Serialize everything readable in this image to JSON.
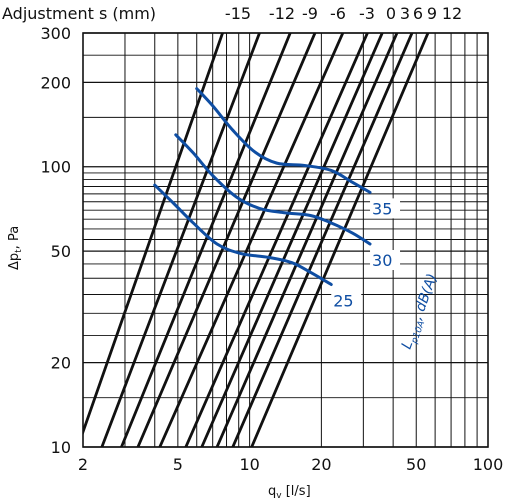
{
  "chart_data": {
    "type": "line",
    "xscale": "log",
    "yscale": "log",
    "xlim": [
      2,
      100
    ],
    "ylim": [
      10,
      300
    ],
    "xlabel": "q",
    "xlabel_sub": "v",
    "xlabel_unit": " [l/s]",
    "ylabel": "Δp",
    "ylabel_sub": "t",
    "ylabel_unit": ", Pa",
    "x_ticks": [
      2,
      5,
      10,
      20,
      50,
      100
    ],
    "y_ticks": [
      10,
      20,
      50,
      100,
      200,
      300
    ],
    "adjustment_title": "Adjustment s (mm)",
    "adjustment_labels": [
      "-15",
      "-12",
      "-9",
      "-6",
      "-3",
      "0",
      "3",
      "6",
      "9",
      "12"
    ],
    "adjustment_lines": [
      {
        "label": "-15",
        "x_at_ymin": 1.9,
        "x_at_ymax": 7.7
      },
      {
        "label": "-12",
        "x_at_ymin": 2.4,
        "x_at_ymax": 11.0
      },
      {
        "label": "-9",
        "x_at_ymin": 2.9,
        "x_at_ymax": 14.8
      },
      {
        "label": "-6",
        "x_at_ymin": 3.4,
        "x_at_ymax": 18.8
      },
      {
        "label": "-3",
        "x_at_ymin": 4.2,
        "x_at_ymax": 24.6
      },
      {
        "label": "0",
        "x_at_ymin": 5.4,
        "x_at_ymax": 31.2
      },
      {
        "label": "3",
        "x_at_ymin": 6.3,
        "x_at_ymax": 36.0
      },
      {
        "label": "6",
        "x_at_ymin": 7.3,
        "x_at_ymax": 41.5
      },
      {
        "label": "9",
        "x_at_ymin": 8.5,
        "x_at_ymax": 48.0
      },
      {
        "label": "12",
        "x_at_ymin": 10.2,
        "x_at_ymax": 56.0
      }
    ],
    "series": [
      {
        "name": "35",
        "points": [
          [
            6.0,
            190
          ],
          [
            7.0,
            165
          ],
          [
            8.5,
            135
          ],
          [
            10.5,
            113
          ],
          [
            13,
            103
          ],
          [
            17,
            101
          ],
          [
            22,
            97
          ],
          [
            27,
            88
          ],
          [
            32,
            81
          ]
        ]
      },
      {
        "name": "30",
        "points": [
          [
            4.9,
            130
          ],
          [
            5.8,
            112
          ],
          [
            7.0,
            93
          ],
          [
            8.8,
            78
          ],
          [
            11,
            71
          ],
          [
            14,
            68.5
          ],
          [
            18,
            67
          ],
          [
            22,
            63
          ],
          [
            27,
            58
          ],
          [
            32,
            53
          ]
        ]
      },
      {
        "name": "25",
        "points": [
          [
            4.0,
            86
          ],
          [
            4.8,
            74
          ],
          [
            5.8,
            63
          ],
          [
            7.3,
            53
          ],
          [
            9.2,
            49
          ],
          [
            12,
            47.5
          ],
          [
            15,
            45.5
          ],
          [
            18,
            42
          ],
          [
            22,
            38
          ]
        ]
      }
    ],
    "curve_label_title": "L",
    "curve_label_sub": "p10A",
    "curve_label_unit": ", dB(A)",
    "grid": true,
    "colors": {
      "curves": "#0f4ea3",
      "lines": "#111111"
    }
  }
}
